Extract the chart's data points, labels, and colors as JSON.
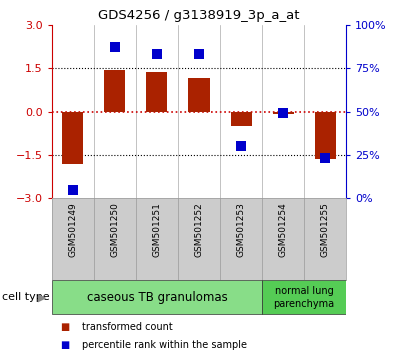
{
  "title": "GDS4256 / g3138919_3p_a_at",
  "samples": [
    "GSM501249",
    "GSM501250",
    "GSM501251",
    "GSM501252",
    "GSM501253",
    "GSM501254",
    "GSM501255"
  ],
  "red_values": [
    -1.8,
    1.42,
    1.35,
    1.15,
    -0.5,
    -0.1,
    -1.65
  ],
  "blue_values": [
    5,
    87,
    83,
    83,
    30,
    49,
    23
  ],
  "left_ylim": [
    -3,
    3
  ],
  "left_yticks": [
    -3,
    -1.5,
    0,
    1.5,
    3
  ],
  "right_ylim": [
    0,
    100
  ],
  "right_yticks": [
    0,
    25,
    50,
    75,
    100
  ],
  "right_yticklabels": [
    "0%",
    "25%",
    "50%",
    "75%",
    "100%"
  ],
  "cell_type_groups": [
    {
      "label": "caseous TB granulomas",
      "n_samples": 5,
      "color": "#88dd88"
    },
    {
      "label": "normal lung\nparenchyma",
      "n_samples": 2,
      "color": "#55cc55"
    }
  ],
  "bar_color": "#aa2200",
  "dot_color": "#0000cc",
  "hline_color": "#cc0000",
  "background_color": "#ffffff",
  "bar_width": 0.5,
  "dot_size": 45,
  "legend_items": [
    {
      "label": "transformed count",
      "color": "#aa2200"
    },
    {
      "label": "percentile rank within the sample",
      "color": "#0000cc"
    }
  ],
  "cell_type_label": "cell type",
  "left_tick_color": "#cc0000",
  "right_tick_color": "#0000cc",
  "xtick_bg_color": "#cccccc",
  "xtick_border_color": "#999999"
}
